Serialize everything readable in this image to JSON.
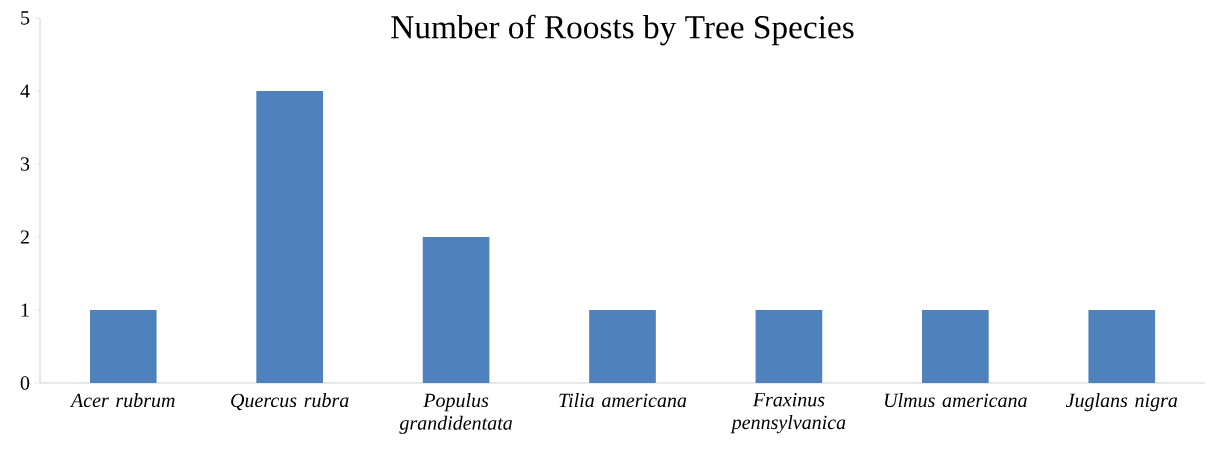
{
  "chart_data": {
    "type": "bar",
    "title": "Number of Roosts by Tree Species",
    "categories": [
      "Acer rubrum",
      "Quercus rubra",
      "Populus grandidentata",
      "Tilia americana",
      "Fraxinus pennsylvanica",
      "Ulmus americana",
      "Juglans nigra"
    ],
    "values": [
      1,
      4,
      2,
      1,
      1,
      1,
      1
    ],
    "color": "#4f81bd",
    "ylim": [
      0,
      5
    ],
    "yticks": [
      0,
      1,
      2,
      3,
      4,
      5
    ]
  }
}
